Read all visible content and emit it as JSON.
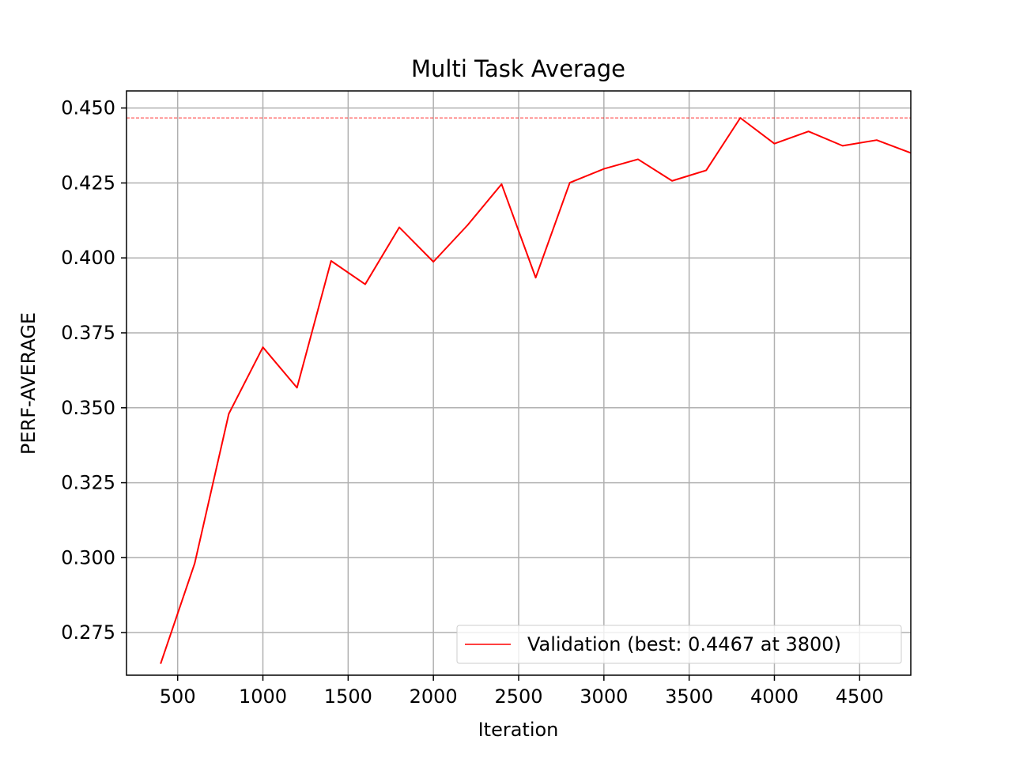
{
  "chart_data": {
    "type": "line",
    "title": "Multi Task Average",
    "xlabel": "Iteration",
    "ylabel": "PERF-AVERAGE",
    "xlim": [
      200,
      4800
    ],
    "ylim": [
      0.2608,
      0.4557
    ],
    "xticks": [
      500,
      1000,
      1500,
      2000,
      2500,
      3000,
      3500,
      4000,
      4500
    ],
    "xtick_labels": [
      "500",
      "1000",
      "1500",
      "2000",
      "2500",
      "3000",
      "3500",
      "4000",
      "4500"
    ],
    "yticks": [
      0.275,
      0.3,
      0.325,
      0.35,
      0.375,
      0.4,
      0.425,
      0.45
    ],
    "ytick_labels": [
      "0.275",
      "0.300",
      "0.325",
      "0.350",
      "0.375",
      "0.400",
      "0.425",
      "0.450"
    ],
    "grid": true,
    "legend_position": "lower-right",
    "series": [
      {
        "name": "Validation (best: 0.4467 at 3800)",
        "color": "#ff0000",
        "x": [
          400,
          600,
          800,
          1000,
          1200,
          1400,
          1600,
          1800,
          2000,
          2200,
          2400,
          2600,
          2800,
          3000,
          3200,
          3400,
          3600,
          3800,
          4000,
          4200,
          4400,
          4600,
          4800
        ],
        "y": [
          0.2646,
          0.2981,
          0.348,
          0.3702,
          0.3567,
          0.399,
          0.3912,
          0.4102,
          0.3987,
          0.4109,
          0.4246,
          0.3934,
          0.4251,
          0.4297,
          0.4329,
          0.4257,
          0.4292,
          0.4467,
          0.4381,
          0.4422,
          0.4374,
          0.4393,
          0.435
        ]
      }
    ],
    "reference_line": {
      "y": 0.4467,
      "color": "#ff0000",
      "style": "dashed"
    }
  }
}
